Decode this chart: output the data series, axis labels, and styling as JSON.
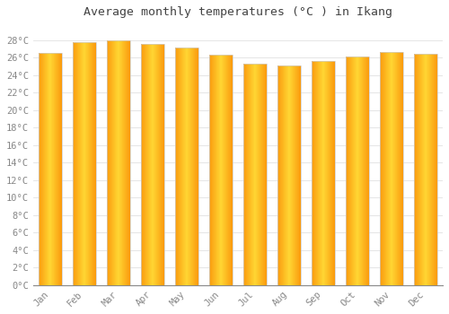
{
  "title": "Average monthly temperatures (°C ) in Ikang",
  "months": [
    "Jan",
    "Feb",
    "Mar",
    "Apr",
    "May",
    "Jun",
    "Jul",
    "Aug",
    "Sep",
    "Oct",
    "Nov",
    "Dec"
  ],
  "values": [
    26.5,
    27.8,
    28.0,
    27.6,
    27.2,
    26.3,
    25.3,
    25.1,
    25.6,
    26.1,
    26.6,
    26.4
  ],
  "ylim": [
    0,
    30
  ],
  "yticks": [
    0,
    2,
    4,
    6,
    8,
    10,
    12,
    14,
    16,
    18,
    20,
    22,
    24,
    26,
    28
  ],
  "bar_color_main": "#FFA500",
  "bar_color_light": "#FFD040",
  "bar_color_dark": "#E07800",
  "bar_edge_color": "#CCCCCC",
  "bg_color": "#FFFFFF",
  "plot_bg_color": "#FFFFFF",
  "grid_color": "#E0E0E0",
  "title_fontsize": 9.5,
  "tick_fontsize": 7.5,
  "title_color": "#444444",
  "tick_color": "#888888",
  "bar_width": 0.7
}
